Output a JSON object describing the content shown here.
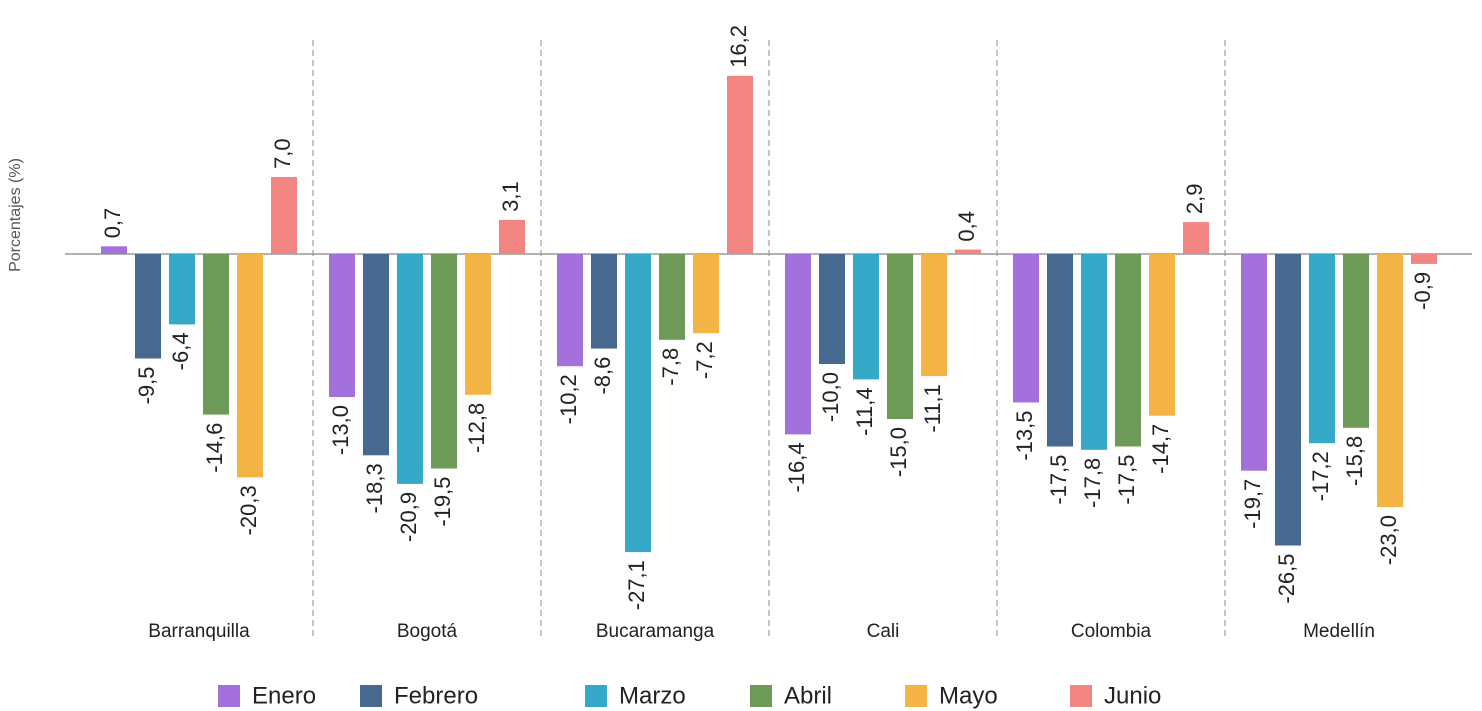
{
  "chart_data": {
    "type": "bar",
    "y_label": "Porcentajes (%)",
    "categories": [
      "Barranquilla",
      "Bogotá",
      "Bucaramanga",
      "Cali",
      "Colombia",
      "Medellín"
    ],
    "ylim": [
      -30,
      20
    ],
    "series": [
      {
        "name": "Enero",
        "color": "#a370dc",
        "values": [
          0.7,
          -13.0,
          -10.2,
          -16.4,
          -13.5,
          -19.7
        ],
        "value_labels": [
          "0,7",
          "-13,0",
          "-10,2",
          "-16,4",
          "-13,5",
          "-19,7"
        ]
      },
      {
        "name": "Febrero",
        "color": "#48698f",
        "values": [
          -9.5,
          -18.3,
          -8.6,
          -10.0,
          -17.5,
          -26.5
        ],
        "value_labels": [
          "-9,5",
          "-18,3",
          "-8,6",
          "-10,0",
          "-17,5",
          "-26,5"
        ]
      },
      {
        "name": "Marzo",
        "color": "#36a9c9",
        "values": [
          -6.4,
          -20.9,
          -27.1,
          -11.4,
          -17.8,
          -17.2
        ],
        "value_labels": [
          "-6,4",
          "-20,9",
          "-27,1",
          "-11,4",
          "-17,8",
          "-17,2"
        ]
      },
      {
        "name": "Abril",
        "color": "#6e9a58",
        "values": [
          -14.6,
          -19.5,
          -7.8,
          -15.0,
          -17.5,
          -15.8
        ],
        "value_labels": [
          "-14,6",
          "-19,5",
          "-7,8",
          "-15,0",
          "-17,5",
          "-15,8"
        ]
      },
      {
        "name": "Mayo",
        "color": "#f4b345",
        "values": [
          -20.3,
          -12.8,
          -7.2,
          -11.1,
          -14.7,
          -23.0
        ],
        "value_labels": [
          "-20,3",
          "-12,8",
          "-7,2",
          "-11,1",
          "-14,7",
          "-23,0"
        ]
      },
      {
        "name": "Junio",
        "color": "#f28482",
        "values": [
          7.0,
          3.1,
          16.2,
          0.4,
          2.9,
          -0.9
        ],
        "value_labels": [
          "7,0",
          "3,1",
          "16,2",
          "0,4",
          "2,9",
          "-0,9"
        ]
      }
    ]
  }
}
